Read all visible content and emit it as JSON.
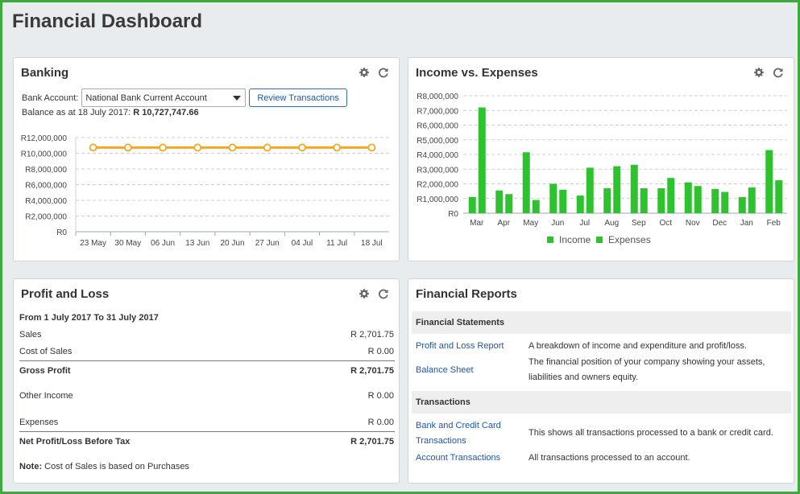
{
  "page": {
    "title": "Financial Dashboard"
  },
  "banking": {
    "title": "Banking",
    "account_label": "Bank Account:",
    "account_value": "National Bank Current Account",
    "review_button": "Review Transactions",
    "balance_label": "Balance as at 18 July 2017:",
    "balance_value": "R 10,727,747.66"
  },
  "income_expenses": {
    "title": "Income vs. Expenses"
  },
  "profit_loss": {
    "title": "Profit and Loss",
    "period": "From 1 July 2017 To 31 July 2017",
    "rows": [
      {
        "label": "Sales",
        "value": "R 2,701.75"
      },
      {
        "label": "Cost of Sales",
        "value": "R 0.00"
      },
      {
        "label": "Gross Profit",
        "value": "R 2,701.75"
      },
      {
        "label": "Other Income",
        "value": "R 0.00"
      },
      {
        "label": "Expenses",
        "value": "R 0.00"
      },
      {
        "label": "Net Profit/Loss Before Tax",
        "value": "R 2,701.75"
      }
    ],
    "note_label": "Note:",
    "note_text": "Cost of Sales is based on Purchases"
  },
  "reports": {
    "title": "Financial Reports",
    "sections": [
      {
        "name": "Financial Statements",
        "items": [
          {
            "link": "Profit and Loss Report",
            "desc": "A breakdown of income and expenditure and profit/loss."
          },
          {
            "link": "Balance Sheet",
            "desc": "The financial position of your company showing your assets, liabilities and owners equity."
          }
        ]
      },
      {
        "name": "Transactions",
        "items": [
          {
            "link": "Bank and Credit Card Transactions",
            "desc": "This shows all transactions processed to a bank or credit card."
          },
          {
            "link": "Account Transactions",
            "desc": "All transactions processed to an account."
          }
        ]
      }
    ]
  },
  "colors": {
    "frame": "#3cab3c",
    "balance_line": "#f5a623",
    "income": "#2ec22e",
    "expenses": "#2ec22e",
    "link": "#1c57a5"
  },
  "icons": {
    "settings": "gear-icon",
    "refresh": "refresh-icon"
  },
  "chart_data": [
    {
      "type": "line",
      "name": "banking-balance",
      "x": [
        "23 May",
        "30 May",
        "06 Jun",
        "13 Jun",
        "20 Jun",
        "27 Jun",
        "04 Jul",
        "11 Jul",
        "18 Jul"
      ],
      "y_tick_labels": [
        "R0",
        "R2,000,000",
        "R4,000,000",
        "R6,000,000",
        "R8,000,000",
        "R10,000,000",
        "R12,000,000"
      ],
      "ylim": [
        0,
        12000000
      ],
      "series": [
        {
          "values": [
            10727747.66,
            10727747.66,
            10727747.66,
            10727747.66,
            10727747.66,
            10727747.66,
            10727747.66,
            10727747.66,
            10727747.66
          ]
        }
      ],
      "grid": true
    },
    {
      "type": "bar",
      "name": "income-vs-expenses",
      "categories": [
        "Mar",
        "Apr",
        "May",
        "Jun",
        "Jul",
        "Aug",
        "Sep",
        "Oct",
        "Nov",
        "Dec",
        "Jan",
        "Feb"
      ],
      "y_tick_labels": [
        "R0",
        "R1,000,000",
        "R2,000,000",
        "R3,000,000",
        "R4,000,000",
        "R5,000,000",
        "R6,000,000",
        "R7,000,000",
        "R8,000,000"
      ],
      "ylim": [
        0,
        8000000
      ],
      "series": [
        {
          "name": "Income",
          "values": [
            1100000,
            1550000,
            4150000,
            2000000,
            1200000,
            1700000,
            3300000,
            1700000,
            2100000,
            1650000,
            1100000,
            4300000
          ]
        },
        {
          "name": "Expenses",
          "values": [
            7200000,
            1300000,
            900000,
            1600000,
            3100000,
            3200000,
            1700000,
            2400000,
            1850000,
            1450000,
            1750000,
            2250000
          ]
        }
      ],
      "legend": "bottom",
      "grid": true
    }
  ]
}
